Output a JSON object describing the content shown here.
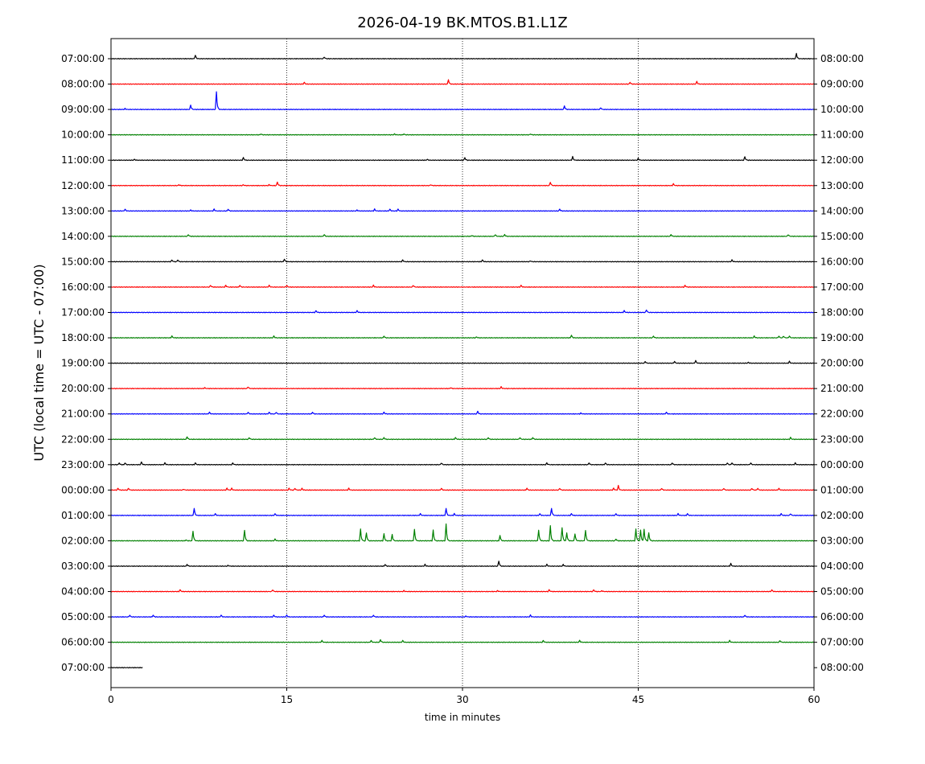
{
  "chart_data": {
    "type": "line",
    "title": "2026-04-19 BK.MTOS.B1.L1Z",
    "xlabel": "time in minutes",
    "ylabel": "UTC (local time = UTC - 07:00)",
    "xlim": [
      0,
      60
    ],
    "x_ticks": [
      "0",
      "15",
      "30",
      "45",
      "60"
    ],
    "vertical_gridlines_at": [
      15,
      30,
      45
    ],
    "trace_color_cycle": [
      "#000000",
      "#ff0000",
      "#0000ff",
      "#008000"
    ],
    "partial_last_trace_minutes": 2.7,
    "left_labels": [
      "07:00:00",
      "08:00:00",
      "09:00:00",
      "10:00:00",
      "11:00:00",
      "12:00:00",
      "13:00:00",
      "14:00:00",
      "15:00:00",
      "16:00:00",
      "17:00:00",
      "18:00:00",
      "19:00:00",
      "20:00:00",
      "21:00:00",
      "22:00:00",
      "23:00:00",
      "00:00:00",
      "01:00:00",
      "02:00:00",
      "03:00:00",
      "04:00:00",
      "05:00:00",
      "06:00:00",
      "07:00:00"
    ],
    "right_labels": [
      "08:00:00",
      "09:00:00",
      "10:00:00",
      "11:00:00",
      "12:00:00",
      "13:00:00",
      "14:00:00",
      "15:00:00",
      "16:00:00",
      "17:00:00",
      "18:00:00",
      "19:00:00",
      "20:00:00",
      "21:00:00",
      "22:00:00",
      "23:00:00",
      "00:00:00",
      "01:00:00",
      "02:00:00",
      "03:00:00",
      "04:00:00",
      "05:00:00",
      "06:00:00",
      "07:00:00",
      "08:00:00"
    ],
    "events": [
      [
        [
          7.2,
          0.2
        ],
        [
          18.2,
          0.1
        ],
        [
          58.5,
          0.3
        ]
      ],
      [
        [
          16.5,
          0.1
        ],
        [
          28.8,
          0.25
        ],
        [
          44.3,
          0.1
        ],
        [
          50.0,
          0.15
        ]
      ],
      [
        [
          1.2,
          0.05
        ],
        [
          6.8,
          0.25
        ],
        [
          9.0,
          1.0
        ],
        [
          38.7,
          0.2
        ],
        [
          41.8,
          0.1
        ]
      ],
      [
        [
          12.8,
          0.05
        ],
        [
          24.2,
          0.05
        ],
        [
          25.0,
          0.05
        ],
        [
          35.8,
          0.05
        ]
      ],
      [
        [
          2.0,
          0.05
        ],
        [
          11.3,
          0.15
        ],
        [
          27.0,
          0.05
        ],
        [
          30.2,
          0.15
        ],
        [
          39.4,
          0.2
        ],
        [
          45.0,
          0.1
        ],
        [
          54.1,
          0.2
        ]
      ],
      [
        [
          5.8,
          0.05
        ],
        [
          11.3,
          0.05
        ],
        [
          13.5,
          0.05
        ],
        [
          14.2,
          0.2
        ],
        [
          27.3,
          0.05
        ],
        [
          37.5,
          0.2
        ],
        [
          48.0,
          0.1
        ]
      ],
      [
        [
          1.2,
          0.1
        ],
        [
          6.8,
          0.05
        ],
        [
          8.8,
          0.1
        ],
        [
          10.0,
          0.1
        ],
        [
          21.0,
          0.05
        ],
        [
          22.5,
          0.1
        ],
        [
          23.8,
          0.1
        ],
        [
          24.5,
          0.1
        ],
        [
          38.3,
          0.1
        ]
      ],
      [
        [
          6.6,
          0.1
        ],
        [
          18.2,
          0.1
        ],
        [
          30.8,
          0.05
        ],
        [
          32.8,
          0.1
        ],
        [
          33.6,
          0.1
        ],
        [
          47.8,
          0.1
        ],
        [
          57.8,
          0.1
        ]
      ],
      [
        [
          5.2,
          0.1
        ],
        [
          5.7,
          0.1
        ],
        [
          14.8,
          0.15
        ],
        [
          24.9,
          0.1
        ],
        [
          31.7,
          0.1
        ],
        [
          35.8,
          0.05
        ],
        [
          53.0,
          0.1
        ]
      ],
      [
        [
          8.5,
          0.1
        ],
        [
          9.8,
          0.1
        ],
        [
          11.0,
          0.1
        ],
        [
          13.5,
          0.1
        ],
        [
          15.0,
          0.1
        ],
        [
          22.4,
          0.1
        ],
        [
          25.8,
          0.1
        ],
        [
          35.0,
          0.1
        ],
        [
          49.0,
          0.1
        ]
      ],
      [
        [
          17.5,
          0.1
        ],
        [
          21.0,
          0.1
        ],
        [
          43.8,
          0.1
        ],
        [
          45.7,
          0.15
        ]
      ],
      [
        [
          5.2,
          0.1
        ],
        [
          13.9,
          0.1
        ],
        [
          23.3,
          0.1
        ],
        [
          31.2,
          0.05
        ],
        [
          39.3,
          0.15
        ],
        [
          46.3,
          0.1
        ],
        [
          54.9,
          0.1
        ],
        [
          57.0,
          0.1
        ],
        [
          57.4,
          0.1
        ],
        [
          57.9,
          0.1
        ]
      ],
      [
        [
          45.6,
          0.1
        ],
        [
          48.1,
          0.1
        ],
        [
          49.9,
          0.15
        ],
        [
          54.4,
          0.05
        ],
        [
          57.9,
          0.1
        ]
      ],
      [
        [
          8.0,
          0.05
        ],
        [
          11.7,
          0.1
        ],
        [
          29.0,
          0.05
        ],
        [
          33.3,
          0.1
        ]
      ],
      [
        [
          8.4,
          0.1
        ],
        [
          11.7,
          0.1
        ],
        [
          13.5,
          0.1
        ],
        [
          14.1,
          0.1
        ],
        [
          17.2,
          0.1
        ],
        [
          23.3,
          0.1
        ],
        [
          31.3,
          0.15
        ],
        [
          40.1,
          0.05
        ],
        [
          47.4,
          0.1
        ]
      ],
      [
        [
          6.5,
          0.15
        ],
        [
          11.8,
          0.1
        ],
        [
          22.5,
          0.1
        ],
        [
          23.3,
          0.1
        ],
        [
          29.4,
          0.1
        ],
        [
          32.2,
          0.1
        ],
        [
          34.9,
          0.1
        ],
        [
          36.0,
          0.1
        ],
        [
          58.0,
          0.1
        ]
      ],
      [
        [
          0.7,
          0.1
        ],
        [
          1.2,
          0.1
        ],
        [
          2.6,
          0.15
        ],
        [
          4.6,
          0.1
        ],
        [
          7.2,
          0.1
        ],
        [
          10.4,
          0.1
        ],
        [
          28.2,
          0.1
        ],
        [
          37.2,
          0.1
        ],
        [
          40.8,
          0.1
        ],
        [
          42.2,
          0.1
        ],
        [
          47.9,
          0.1
        ],
        [
          52.6,
          0.1
        ],
        [
          53.0,
          0.1
        ],
        [
          54.6,
          0.1
        ],
        [
          58.4,
          0.1
        ]
      ],
      [
        [
          0.6,
          0.1
        ],
        [
          1.5,
          0.1
        ],
        [
          6.2,
          0.05
        ],
        [
          9.9,
          0.1
        ],
        [
          10.3,
          0.1
        ],
        [
          15.2,
          0.1
        ],
        [
          15.7,
          0.1
        ],
        [
          16.3,
          0.1
        ],
        [
          20.3,
          0.1
        ],
        [
          28.2,
          0.1
        ],
        [
          35.5,
          0.1
        ],
        [
          38.3,
          0.1
        ],
        [
          42.9,
          0.1
        ],
        [
          43.3,
          0.25
        ],
        [
          47.0,
          0.1
        ],
        [
          52.3,
          0.1
        ],
        [
          54.7,
          0.1
        ],
        [
          55.2,
          0.1
        ],
        [
          57.0,
          0.1
        ]
      ],
      [
        [
          7.1,
          0.4
        ],
        [
          8.9,
          0.1
        ],
        [
          14.0,
          0.1
        ],
        [
          26.4,
          0.1
        ],
        [
          28.6,
          0.4
        ],
        [
          29.3,
          0.1
        ],
        [
          36.6,
          0.1
        ],
        [
          37.6,
          0.4
        ],
        [
          39.3,
          0.1
        ],
        [
          43.1,
          0.1
        ],
        [
          48.4,
          0.1
        ],
        [
          49.2,
          0.1
        ],
        [
          57.2,
          0.1
        ],
        [
          58.0,
          0.1
        ]
      ],
      [
        [
          6.4,
          0.05
        ],
        [
          7.0,
          0.55
        ],
        [
          11.4,
          0.6
        ],
        [
          14.0,
          0.1
        ],
        [
          21.3,
          0.65
        ],
        [
          21.8,
          0.45
        ],
        [
          23.3,
          0.4
        ],
        [
          24.0,
          0.35
        ],
        [
          25.9,
          0.65
        ],
        [
          27.5,
          0.6
        ],
        [
          28.6,
          0.95
        ],
        [
          33.2,
          0.3
        ],
        [
          36.5,
          0.6
        ],
        [
          37.5,
          0.85
        ],
        [
          38.5,
          0.75
        ],
        [
          38.9,
          0.45
        ],
        [
          39.6,
          0.4
        ],
        [
          40.5,
          0.6
        ],
        [
          43.1,
          0.1
        ],
        [
          44.8,
          0.65
        ],
        [
          45.2,
          0.6
        ],
        [
          45.5,
          0.65
        ],
        [
          45.9,
          0.45
        ]
      ],
      [
        [
          6.5,
          0.1
        ],
        [
          10.0,
          0.05
        ],
        [
          23.4,
          0.1
        ],
        [
          26.8,
          0.1
        ],
        [
          33.1,
          0.3
        ],
        [
          37.2,
          0.1
        ],
        [
          38.6,
          0.1
        ],
        [
          52.9,
          0.15
        ]
      ],
      [
        [
          5.9,
          0.1
        ],
        [
          13.8,
          0.1
        ],
        [
          25.0,
          0.05
        ],
        [
          33.0,
          0.05
        ],
        [
          37.4,
          0.1
        ],
        [
          41.2,
          0.1
        ],
        [
          41.9,
          0.05
        ],
        [
          56.4,
          0.1
        ]
      ],
      [
        [
          1.6,
          0.1
        ],
        [
          3.6,
          0.1
        ],
        [
          9.4,
          0.1
        ],
        [
          13.9,
          0.1
        ],
        [
          15.0,
          0.1
        ],
        [
          18.2,
          0.1
        ],
        [
          22.4,
          0.1
        ],
        [
          30.3,
          0.05
        ],
        [
          35.8,
          0.1
        ],
        [
          54.1,
          0.1
        ]
      ],
      [
        [
          18.0,
          0.1
        ],
        [
          22.2,
          0.1
        ],
        [
          23.0,
          0.15
        ],
        [
          24.9,
          0.1
        ],
        [
          36.9,
          0.1
        ],
        [
          40.0,
          0.1
        ],
        [
          52.8,
          0.1
        ],
        [
          57.1,
          0.1
        ]
      ],
      []
    ]
  }
}
